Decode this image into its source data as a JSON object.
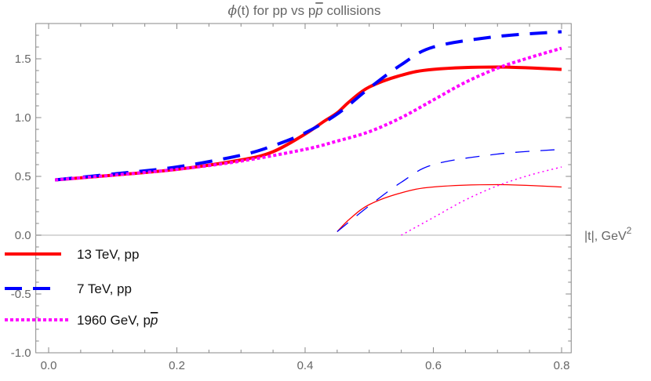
{
  "chart_data": {
    "type": "line",
    "title_prefix": "ϕ",
    "title_rest": "(t) for pp vs p",
    "title_pbar": "p",
    "title_suffix": " collisions",
    "xlabel": "|t|, GeV",
    "xlabel_sup": "2",
    "ylabel": "",
    "xlim": [
      -0.02,
      0.815
    ],
    "ylim": [
      -1.0,
      1.8
    ],
    "xticks": [
      0.0,
      0.2,
      0.4,
      0.6,
      0.8
    ],
    "xtick_labels": [
      "0.0",
      "0.2",
      "0.4",
      "0.6",
      "0.8"
    ],
    "yticks": [
      -1.0,
      -0.5,
      0.0,
      0.5,
      1.0,
      1.5
    ],
    "ytick_labels": [
      "-1.0",
      "-0.5",
      "0.0",
      "0.5",
      "1.0",
      "1.5"
    ],
    "grid": false,
    "legend_placement": "bottom-left",
    "series": [
      {
        "name": "13 TeV, pp",
        "color": "#ff0000",
        "style": "solid",
        "x": [
          0.01,
          0.1,
          0.2,
          0.3,
          0.35,
          0.4,
          0.43,
          0.45,
          0.47,
          0.5,
          0.55,
          0.6,
          0.7,
          0.8
        ],
        "y": [
          0.47,
          0.51,
          0.56,
          0.64,
          0.71,
          0.86,
          0.97,
          1.04,
          1.14,
          1.26,
          1.36,
          1.41,
          1.43,
          1.41
        ]
      },
      {
        "name": "7 TeV, pp",
        "color": "#0000ff",
        "style": "dashed",
        "x": [
          0.01,
          0.1,
          0.2,
          0.3,
          0.35,
          0.4,
          0.45,
          0.5,
          0.55,
          0.6,
          0.7,
          0.8
        ],
        "y": [
          0.47,
          0.52,
          0.58,
          0.68,
          0.76,
          0.87,
          1.03,
          1.25,
          1.45,
          1.6,
          1.69,
          1.73
        ]
      },
      {
        "name_prefix": "1960 GeV, p",
        "name_pbar": "p",
        "color": "#ff00ff",
        "style": "dotted",
        "x": [
          0.01,
          0.1,
          0.2,
          0.3,
          0.4,
          0.45,
          0.5,
          0.55,
          0.6,
          0.65,
          0.7,
          0.75,
          0.8
        ],
        "y": [
          0.47,
          0.51,
          0.56,
          0.63,
          0.73,
          0.8,
          0.88,
          1.0,
          1.15,
          1.3,
          1.42,
          1.51,
          1.59
        ]
      },
      {
        "color": "#ff0000",
        "style": "solid-thin",
        "x": [
          0.45,
          0.47,
          0.5,
          0.55,
          0.6,
          0.7,
          0.8
        ],
        "y": [
          0.03,
          0.14,
          0.26,
          0.36,
          0.41,
          0.43,
          0.41
        ]
      },
      {
        "color": "#0000ff",
        "style": "dashed-thin",
        "x": [
          0.45,
          0.5,
          0.55,
          0.6,
          0.7,
          0.8
        ],
        "y": [
          0.03,
          0.25,
          0.45,
          0.6,
          0.69,
          0.73
        ]
      },
      {
        "color": "#ff00ff",
        "style": "dotted-thin",
        "x": [
          0.55,
          0.6,
          0.65,
          0.7,
          0.75,
          0.8
        ],
        "y": [
          0.0,
          0.15,
          0.3,
          0.42,
          0.51,
          0.58
        ]
      }
    ]
  }
}
